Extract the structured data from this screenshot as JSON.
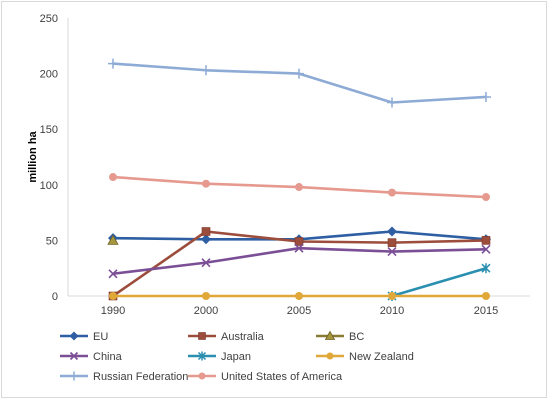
{
  "chart_data": {
    "type": "line",
    "title": "",
    "xlabel": "",
    "ylabel": "million ha",
    "ylim": [
      0,
      250
    ],
    "yticks": [
      0,
      50,
      100,
      150,
      200,
      250
    ],
    "x": [
      1990,
      2000,
      2005,
      2010,
      2015
    ],
    "x_tick_labels": [
      "1990",
      "2000",
      "2005",
      "2010",
      "2015"
    ],
    "grid": false,
    "legend_position": "bottom",
    "series": [
      {
        "name": "EU",
        "values": [
          52,
          51,
          51,
          58,
          51
        ],
        "color": "#2e5fa3",
        "marker": "diamond"
      },
      {
        "name": "Australia",
        "values": [
          0,
          58,
          49,
          48,
          50
        ],
        "color": "#9c4d3c",
        "marker": "square"
      },
      {
        "name": "BC",
        "values": [
          50,
          null,
          null,
          null,
          null
        ],
        "color": "#8a7a35",
        "marker": "triangle"
      },
      {
        "name": "China",
        "values": [
          20,
          30,
          43,
          40,
          42
        ],
        "color": "#7b4f96",
        "marker": "x"
      },
      {
        "name": "Japan",
        "values": [
          null,
          null,
          null,
          0,
          25
        ],
        "color": "#2a8fb0",
        "marker": "asterisk"
      },
      {
        "name": "New Zealand",
        "values": [
          0,
          0,
          0,
          0,
          0
        ],
        "color": "#e0a838",
        "marker": "circle"
      },
      {
        "name": "Russian Federation",
        "values": [
          209,
          203,
          200,
          174,
          179
        ],
        "color": "#8eabd6",
        "marker": "plus"
      },
      {
        "name": "United States of America",
        "values": [
          107,
          101,
          98,
          93,
          89
        ],
        "color": "#e69a8f",
        "marker": "circle"
      }
    ]
  }
}
